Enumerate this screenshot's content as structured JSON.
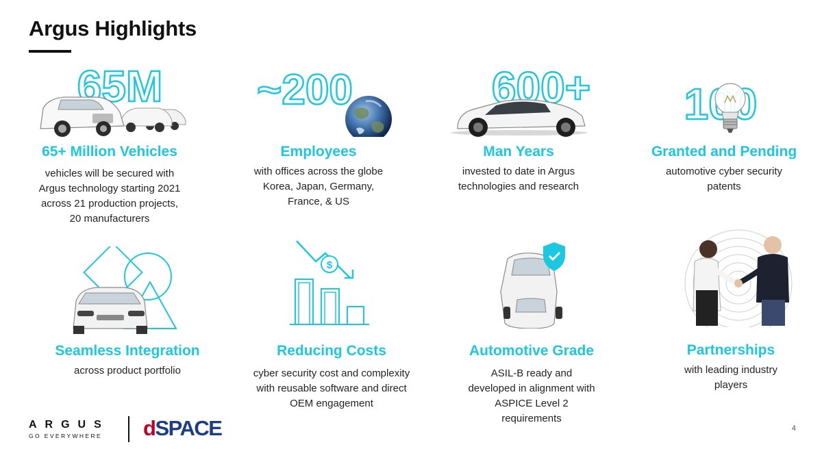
{
  "title": "Argus Highlights",
  "accent_color": "#1cc7e0",
  "page_number": "4",
  "stats": [
    {
      "big": "65M",
      "heading": "65+ Million Vehicles",
      "description": "vehicles will be secured with\nArgus technology starting 2021\nacross 21 production projects,\n20 manufacturers",
      "image": "car-fleet"
    },
    {
      "big": "~200",
      "heading": "Employees",
      "description": "with offices across the globe\nKorea, Japan, Germany,\nFrance, & US",
      "image": "earth-globe"
    },
    {
      "big": "600+",
      "heading": "Man Years",
      "description": "invested to date in Argus\ntechnologies and research",
      "image": "sports-car"
    },
    {
      "big": "100",
      "heading": "Granted and Pending",
      "description": "automotive cyber security\npatents",
      "image": "light-bulb"
    }
  ],
  "features": [
    {
      "heading": "Seamless Integration",
      "description": "across product portfolio",
      "icon": "integration-shapes-icon"
    },
    {
      "heading": "Reducing Costs",
      "description": "cyber security cost and complexity\nwith reusable software and direct\nOEM engagement",
      "icon": "cost-chart-icon"
    },
    {
      "heading": "Automotive Grade",
      "description": "ASIL-B ready and\ndeveloped in alignment with\nASPICE Level 2\nrequirements",
      "icon": "shield-check-icon"
    },
    {
      "heading": "Partnerships",
      "description": "with leading industry\nplayers",
      "icon": "handshake-photo"
    }
  ],
  "logos": {
    "argus_word": "ARGUS",
    "argus_tagline": "GO EVERYWHERE",
    "dspace_d": "d",
    "dspace_rest": "SPACE"
  }
}
